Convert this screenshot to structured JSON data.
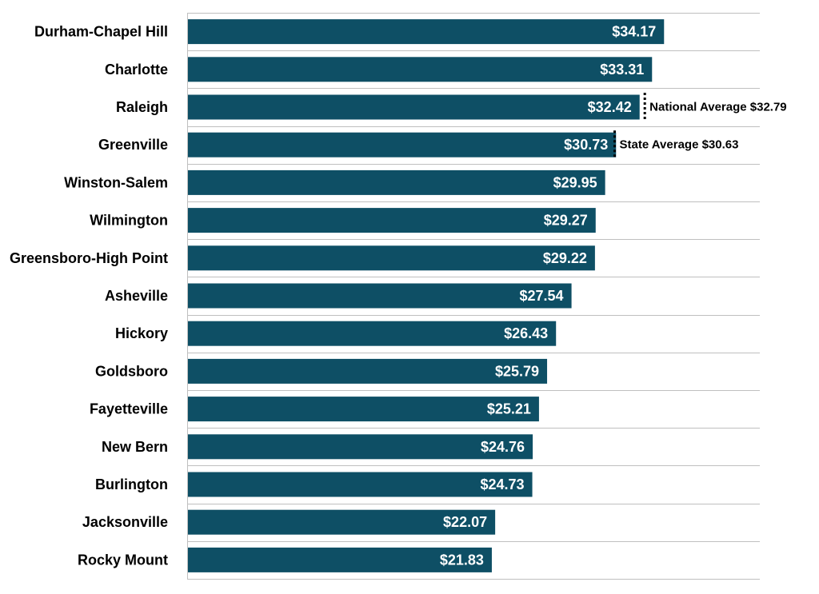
{
  "chart_data": {
    "type": "bar",
    "orientation": "horizontal",
    "categories": [
      "Durham-Chapel Hill",
      "Charlotte",
      "Raleigh",
      "Greenville",
      "Winston-Salem",
      "Wilmington",
      "Greensboro-High Point",
      "Asheville",
      "Hickory",
      "Goldsboro",
      "Fayetteville",
      "New Bern",
      "Burlington",
      "Jacksonville",
      "Rocky Mount"
    ],
    "values": [
      34.17,
      33.31,
      32.42,
      30.73,
      29.95,
      29.27,
      29.22,
      27.54,
      26.43,
      25.79,
      25.21,
      24.76,
      24.73,
      22.07,
      21.83
    ],
    "value_labels": [
      "$34.17",
      "$33.31",
      "$32.42",
      "$30.73",
      "$29.95",
      "$29.27",
      "$29.22",
      "$27.54",
      "$26.43",
      "$25.79",
      "$25.21",
      "$24.76",
      "$24.73",
      "$22.07",
      "$21.83"
    ],
    "title": "",
    "xlabel": "",
    "ylabel": "",
    "xlim": [
      0,
      41
    ],
    "grid": true,
    "bar_color": "#0e4f65",
    "reference_lines": [
      {
        "label": "National Average $32.79",
        "value": 32.79,
        "category": "Raleigh"
      },
      {
        "label": "State Average $30.63",
        "value": 30.63,
        "category": "Greenville"
      }
    ]
  }
}
